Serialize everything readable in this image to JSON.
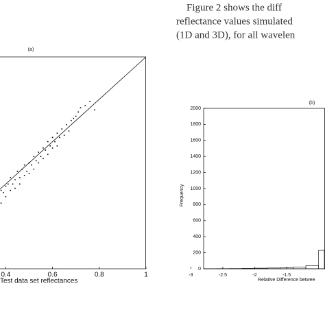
{
  "text": {
    "lines": [
      "Figure 2 shows the diff",
      "reflectance values simulated",
      "(1D and 3D), for all wavelen"
    ]
  },
  "chart_data": [
    {
      "type": "scatter",
      "panel": "(a)",
      "xlabel": "Test data set reflectances",
      "color": "#000000",
      "xlim": [
        0,
        1
      ],
      "ylim": [
        0,
        1
      ],
      "xticks": [
        0.4,
        0.6,
        0.8,
        1
      ],
      "x": [
        0.37,
        0.38,
        0.38,
        0.39,
        0.4,
        0.4,
        0.41,
        0.42,
        0.42,
        0.43,
        0.44,
        0.44,
        0.45,
        0.46,
        0.46,
        0.47,
        0.48,
        0.48,
        0.49,
        0.5,
        0.5,
        0.51,
        0.52,
        0.52,
        0.53,
        0.54,
        0.54,
        0.55,
        0.56,
        0.56,
        0.57,
        0.58,
        0.58,
        0.59,
        0.6,
        0.6,
        0.61,
        0.62,
        0.62,
        0.63,
        0.64,
        0.65,
        0.66,
        0.67,
        0.68,
        0.69,
        0.7,
        0.71,
        0.72,
        0.74,
        0.76,
        0.78
      ],
      "values": [
        0.33,
        0.37,
        0.31,
        0.36,
        0.39,
        0.34,
        0.4,
        0.37,
        0.43,
        0.4,
        0.42,
        0.38,
        0.46,
        0.43,
        0.4,
        0.47,
        0.44,
        0.49,
        0.46,
        0.5,
        0.45,
        0.49,
        0.53,
        0.47,
        0.51,
        0.55,
        0.5,
        0.53,
        0.57,
        0.52,
        0.56,
        0.6,
        0.54,
        0.58,
        0.62,
        0.57,
        0.6,
        0.64,
        0.58,
        0.62,
        0.66,
        0.63,
        0.68,
        0.65,
        0.7,
        0.71,
        0.72,
        0.74,
        0.76,
        0.77,
        0.79,
        0.75
      ]
    },
    {
      "type": "histogram",
      "panel": "(b)",
      "xlabel": "Relative Difference betwee",
      "ylabel": "Frequency",
      "color": "#000000",
      "xlim": [
        -2.8,
        -0.9
      ],
      "ylim": [
        0,
        2000
      ],
      "xticks": [
        -3,
        -2.5,
        -2,
        -1.5
      ],
      "yticks": [
        0,
        200,
        400,
        600,
        800,
        1000,
        1200,
        1400,
        1600,
        1800,
        2000
      ],
      "bins": [
        -2.8,
        -2.6,
        -2.4,
        -2.2,
        -2.0,
        -1.8,
        -1.6,
        -1.4,
        -1.2,
        -1.0,
        -0.9
      ],
      "values": [
        1,
        2,
        3,
        5,
        8,
        10,
        12,
        20,
        40,
        230
      ]
    }
  ]
}
